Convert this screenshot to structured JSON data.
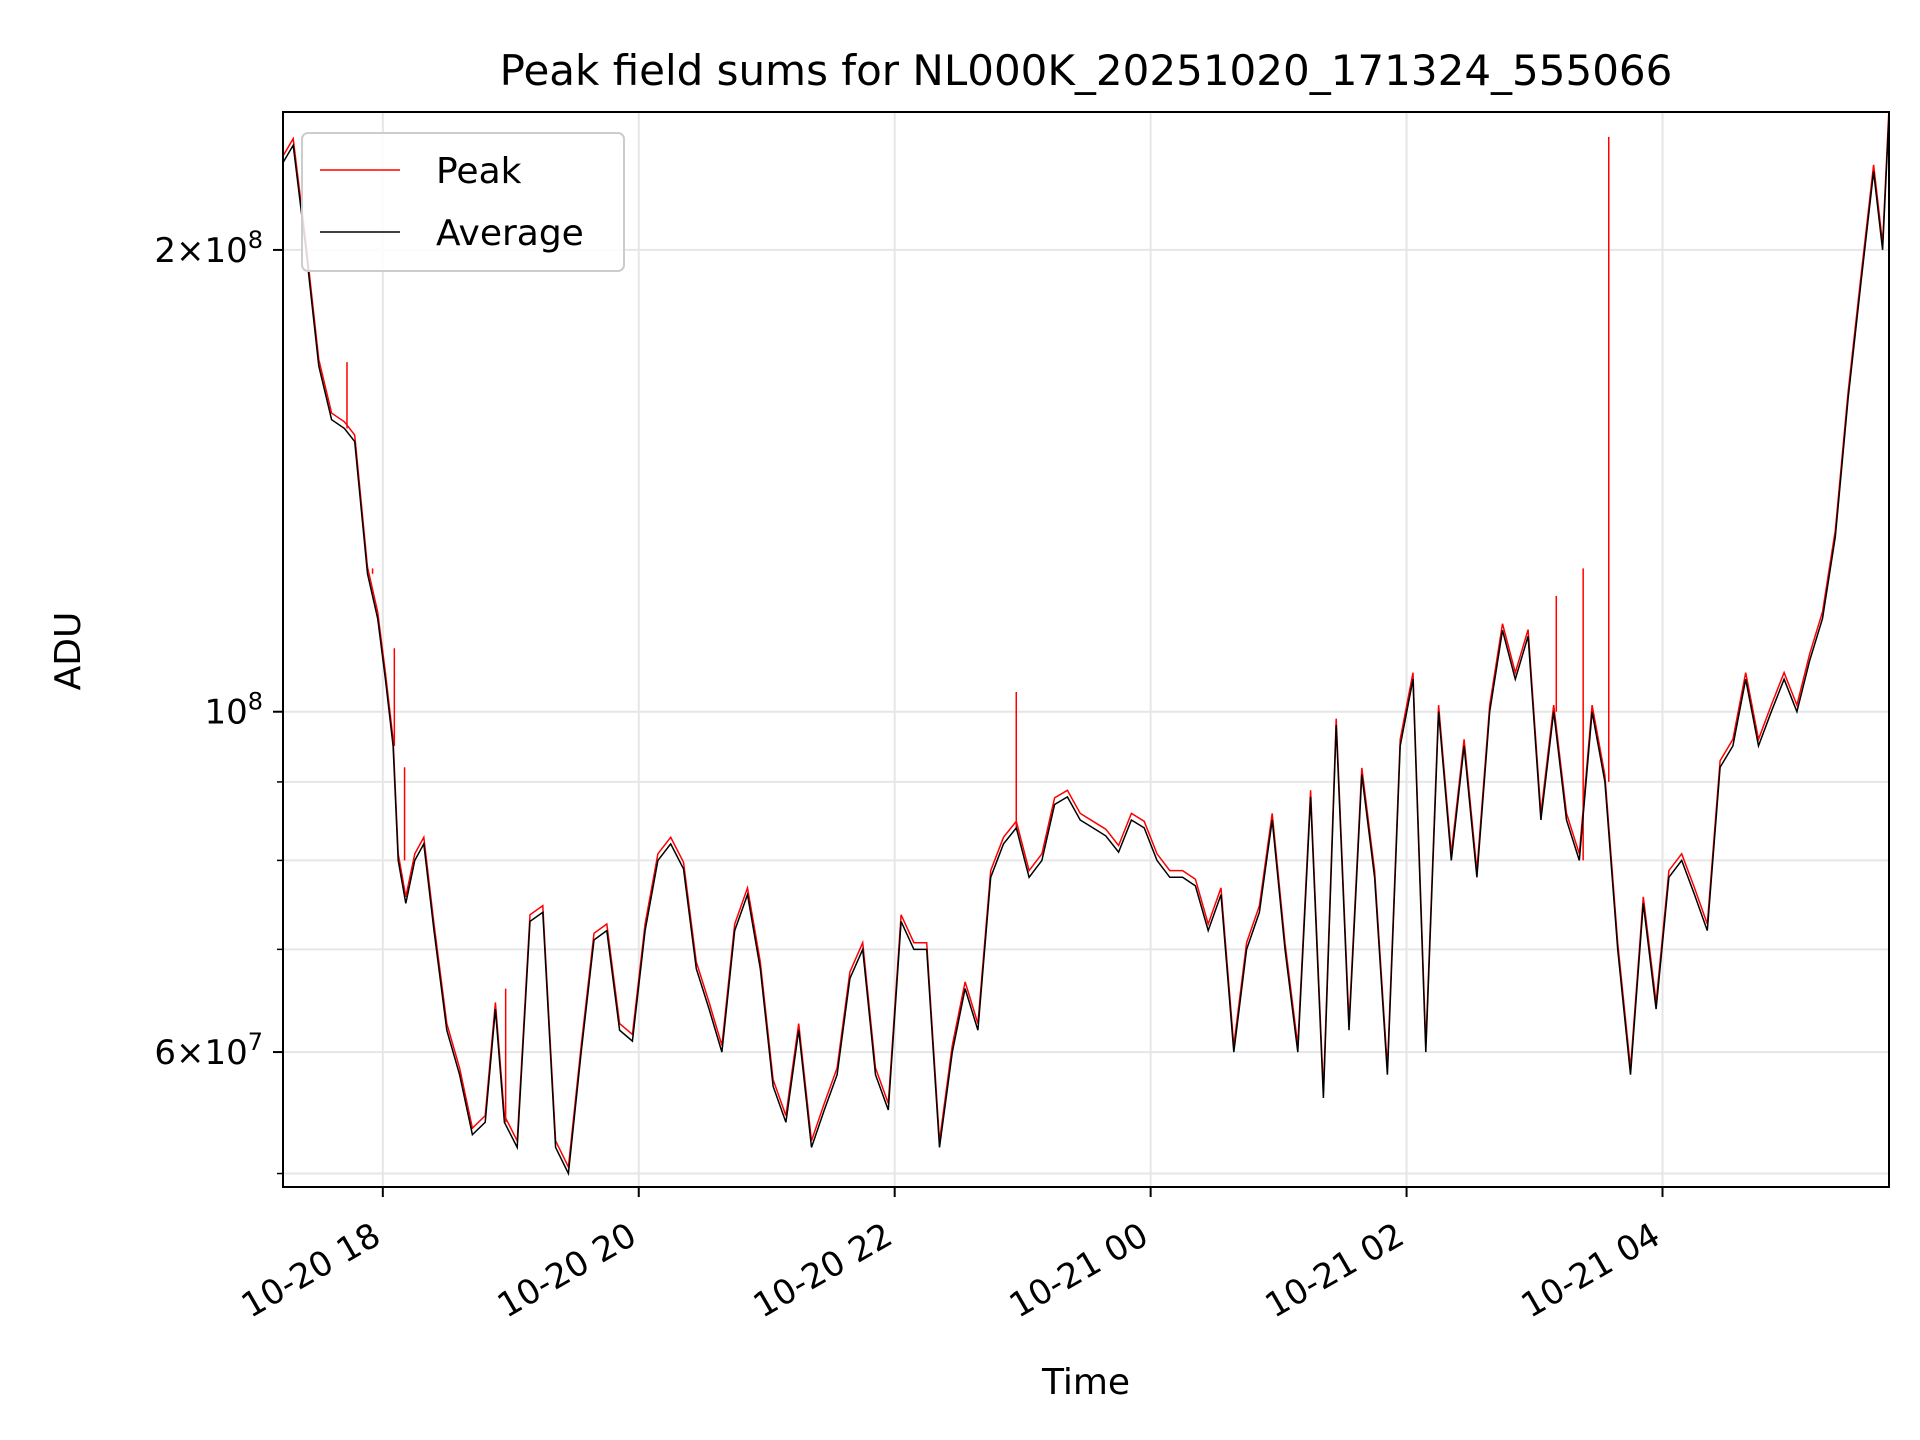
{
  "chart_data": {
    "type": "line",
    "title": "Peak field sums for NL000K_20251020_171324_555066",
    "xlabel": "Time",
    "ylabel": "ADU",
    "y_scale": "log",
    "grid": true,
    "legend_position": "upper left",
    "x_tick_labels": [
      "10-20 18",
      "10-20 20",
      "10-20 22",
      "10-21 00",
      "10-21 02",
      "10-21 04"
    ],
    "y_tick_labels": [
      {
        "base": "2",
        "mult": "×",
        "pow": "10",
        "exp": "8",
        "value": 200000000
      },
      {
        "base": "",
        "mult": "",
        "pow": "10",
        "exp": "8",
        "value": 100000000
      },
      {
        "base": "6",
        "mult": "×",
        "pow": "10",
        "exp": "7",
        "value": 60000000
      }
    ],
    "x_range_hours": [
      17.22,
      29.77
    ],
    "y_range": [
      49000000,
      246000000
    ],
    "series": [
      {
        "name": "Peak",
        "color": "#ff0000",
        "spikes": [
          [
            17.22,
            240000000
          ],
          [
            17.72,
            169000000
          ],
          [
            17.92,
            124000000
          ],
          [
            18.09,
            110000000
          ],
          [
            18.17,
            92000000
          ],
          [
            18.96,
            66000000
          ],
          [
            22.95,
            103000000
          ],
          [
            27.17,
            119000000
          ],
          [
            27.38,
            124000000
          ],
          [
            27.58,
            237000000
          ]
        ]
      },
      {
        "name": "Average",
        "color": "#000000",
        "x_unit": "hours since 10-20 00:00",
        "points": [
          [
            17.22,
            228000000
          ],
          [
            17.3,
            234000000
          ],
          [
            17.4,
            200000000
          ],
          [
            17.5,
            168000000
          ],
          [
            17.6,
            155000000
          ],
          [
            17.7,
            153000000
          ],
          [
            17.78,
            150000000
          ],
          [
            17.88,
            123000000
          ],
          [
            17.96,
            115000000
          ],
          [
            18.02,
            105000000
          ],
          [
            18.08,
            95000000
          ],
          [
            18.12,
            80000000
          ],
          [
            18.18,
            75000000
          ],
          [
            18.25,
            80000000
          ],
          [
            18.32,
            82000000
          ],
          [
            18.4,
            72000000
          ],
          [
            18.5,
            62000000
          ],
          [
            18.6,
            58000000
          ],
          [
            18.7,
            53000000
          ],
          [
            18.8,
            54000000
          ],
          [
            18.88,
            64000000
          ],
          [
            18.95,
            54000000
          ],
          [
            19.05,
            52000000
          ],
          [
            19.15,
            73000000
          ],
          [
            19.25,
            74000000
          ],
          [
            19.35,
            52000000
          ],
          [
            19.45,
            50000000
          ],
          [
            19.55,
            60000000
          ],
          [
            19.65,
            71000000
          ],
          [
            19.75,
            72000000
          ],
          [
            19.85,
            62000000
          ],
          [
            19.95,
            61000000
          ],
          [
            20.05,
            72000000
          ],
          [
            20.15,
            80000000
          ],
          [
            20.25,
            82000000
          ],
          [
            20.35,
            79000000
          ],
          [
            20.45,
            68000000
          ],
          [
            20.55,
            64000000
          ],
          [
            20.65,
            60000000
          ],
          [
            20.75,
            72000000
          ],
          [
            20.85,
            76000000
          ],
          [
            20.95,
            68000000
          ],
          [
            21.05,
            57000000
          ],
          [
            21.15,
            54000000
          ],
          [
            21.25,
            62000000
          ],
          [
            21.35,
            52000000
          ],
          [
            21.45,
            55000000
          ],
          [
            21.55,
            58000000
          ],
          [
            21.65,
            67000000
          ],
          [
            21.75,
            70000000
          ],
          [
            21.85,
            58000000
          ],
          [
            21.95,
            55000000
          ],
          [
            22.05,
            73000000
          ],
          [
            22.15,
            70000000
          ],
          [
            22.25,
            70000000
          ],
          [
            22.35,
            52000000
          ],
          [
            22.45,
            60000000
          ],
          [
            22.55,
            66000000
          ],
          [
            22.65,
            62000000
          ],
          [
            22.75,
            78000000
          ],
          [
            22.85,
            82000000
          ],
          [
            22.95,
            84000000
          ],
          [
            23.05,
            78000000
          ],
          [
            23.15,
            80000000
          ],
          [
            23.25,
            87000000
          ],
          [
            23.35,
            88000000
          ],
          [
            23.45,
            85000000
          ],
          [
            23.55,
            84000000
          ],
          [
            23.65,
            83000000
          ],
          [
            23.75,
            81000000
          ],
          [
            23.85,
            85000000
          ],
          [
            23.95,
            84000000
          ],
          [
            24.05,
            80000000
          ],
          [
            24.15,
            78000000
          ],
          [
            24.25,
            78000000
          ],
          [
            24.35,
            77000000
          ],
          [
            24.45,
            72000000
          ],
          [
            24.55,
            76000000
          ],
          [
            24.65,
            60000000
          ],
          [
            24.75,
            70000000
          ],
          [
            24.85,
            74000000
          ],
          [
            24.95,
            85000000
          ],
          [
            25.05,
            70000000
          ],
          [
            25.15,
            60000000
          ],
          [
            25.25,
            88000000
          ],
          [
            25.35,
            56000000
          ],
          [
            25.45,
            98000000
          ],
          [
            25.55,
            62000000
          ],
          [
            25.65,
            91000000
          ],
          [
            25.75,
            78000000
          ],
          [
            25.85,
            58000000
          ],
          [
            25.95,
            95000000
          ],
          [
            26.05,
            105000000
          ],
          [
            26.15,
            60000000
          ],
          [
            26.25,
            100000000
          ],
          [
            26.35,
            80000000
          ],
          [
            26.45,
            95000000
          ],
          [
            26.55,
            78000000
          ],
          [
            26.65,
            100000000
          ],
          [
            26.75,
            113000000
          ],
          [
            26.85,
            105000000
          ],
          [
            26.95,
            112000000
          ],
          [
            27.05,
            85000000
          ],
          [
            27.15,
            100000000
          ],
          [
            27.25,
            85000000
          ],
          [
            27.35,
            80000000
          ],
          [
            27.45,
            100000000
          ],
          [
            27.55,
            90000000
          ],
          [
            27.65,
            70000000
          ],
          [
            27.75,
            58000000
          ],
          [
            27.85,
            75000000
          ],
          [
            27.95,
            64000000
          ],
          [
            28.05,
            78000000
          ],
          [
            28.15,
            80000000
          ],
          [
            28.25,
            76000000
          ],
          [
            28.35,
            72000000
          ],
          [
            28.45,
            92000000
          ],
          [
            28.55,
            95000000
          ],
          [
            28.65,
            105000000
          ],
          [
            28.75,
            95000000
          ],
          [
            28.85,
            100000000
          ],
          [
            28.95,
            105000000
          ],
          [
            29.05,
            100000000
          ],
          [
            29.15,
            108000000
          ],
          [
            29.25,
            115000000
          ],
          [
            29.35,
            130000000
          ],
          [
            29.45,
            160000000
          ],
          [
            29.55,
            190000000
          ],
          [
            29.65,
            225000000
          ],
          [
            29.72,
            200000000
          ],
          [
            29.77,
            245000000
          ]
        ]
      }
    ]
  }
}
